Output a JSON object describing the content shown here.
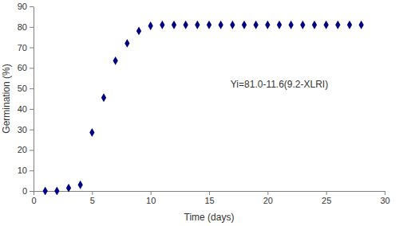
{
  "chart_data": {
    "type": "scatter",
    "x_label": "Time (days)",
    "y_label": "Germination (%)",
    "annotation": "Yi=81.0-11.6(9.2-XLRI)",
    "x": [
      1,
      2,
      3,
      4,
      5,
      6,
      7,
      8,
      9,
      10,
      11,
      12,
      13,
      14,
      15,
      16,
      17,
      18,
      19,
      20,
      21,
      22,
      23,
      24,
      25,
      26,
      27,
      28
    ],
    "values": [
      0,
      0,
      1.5,
      3,
      28.5,
      45.5,
      63.5,
      72,
      78,
      80.5,
      81,
      81,
      81,
      81,
      81,
      81,
      81,
      81,
      81,
      81,
      81,
      81,
      81,
      81,
      81,
      81,
      81,
      81
    ],
    "color": "#000080",
    "marker": "diamond",
    "xlim": [
      0,
      30
    ],
    "ylim": [
      0,
      90
    ],
    "xticks": [
      0,
      5,
      10,
      15,
      20,
      25,
      30
    ],
    "yticks": [
      0,
      10,
      20,
      30,
      40,
      50,
      60,
      70,
      80,
      90
    ],
    "grid": false
  }
}
